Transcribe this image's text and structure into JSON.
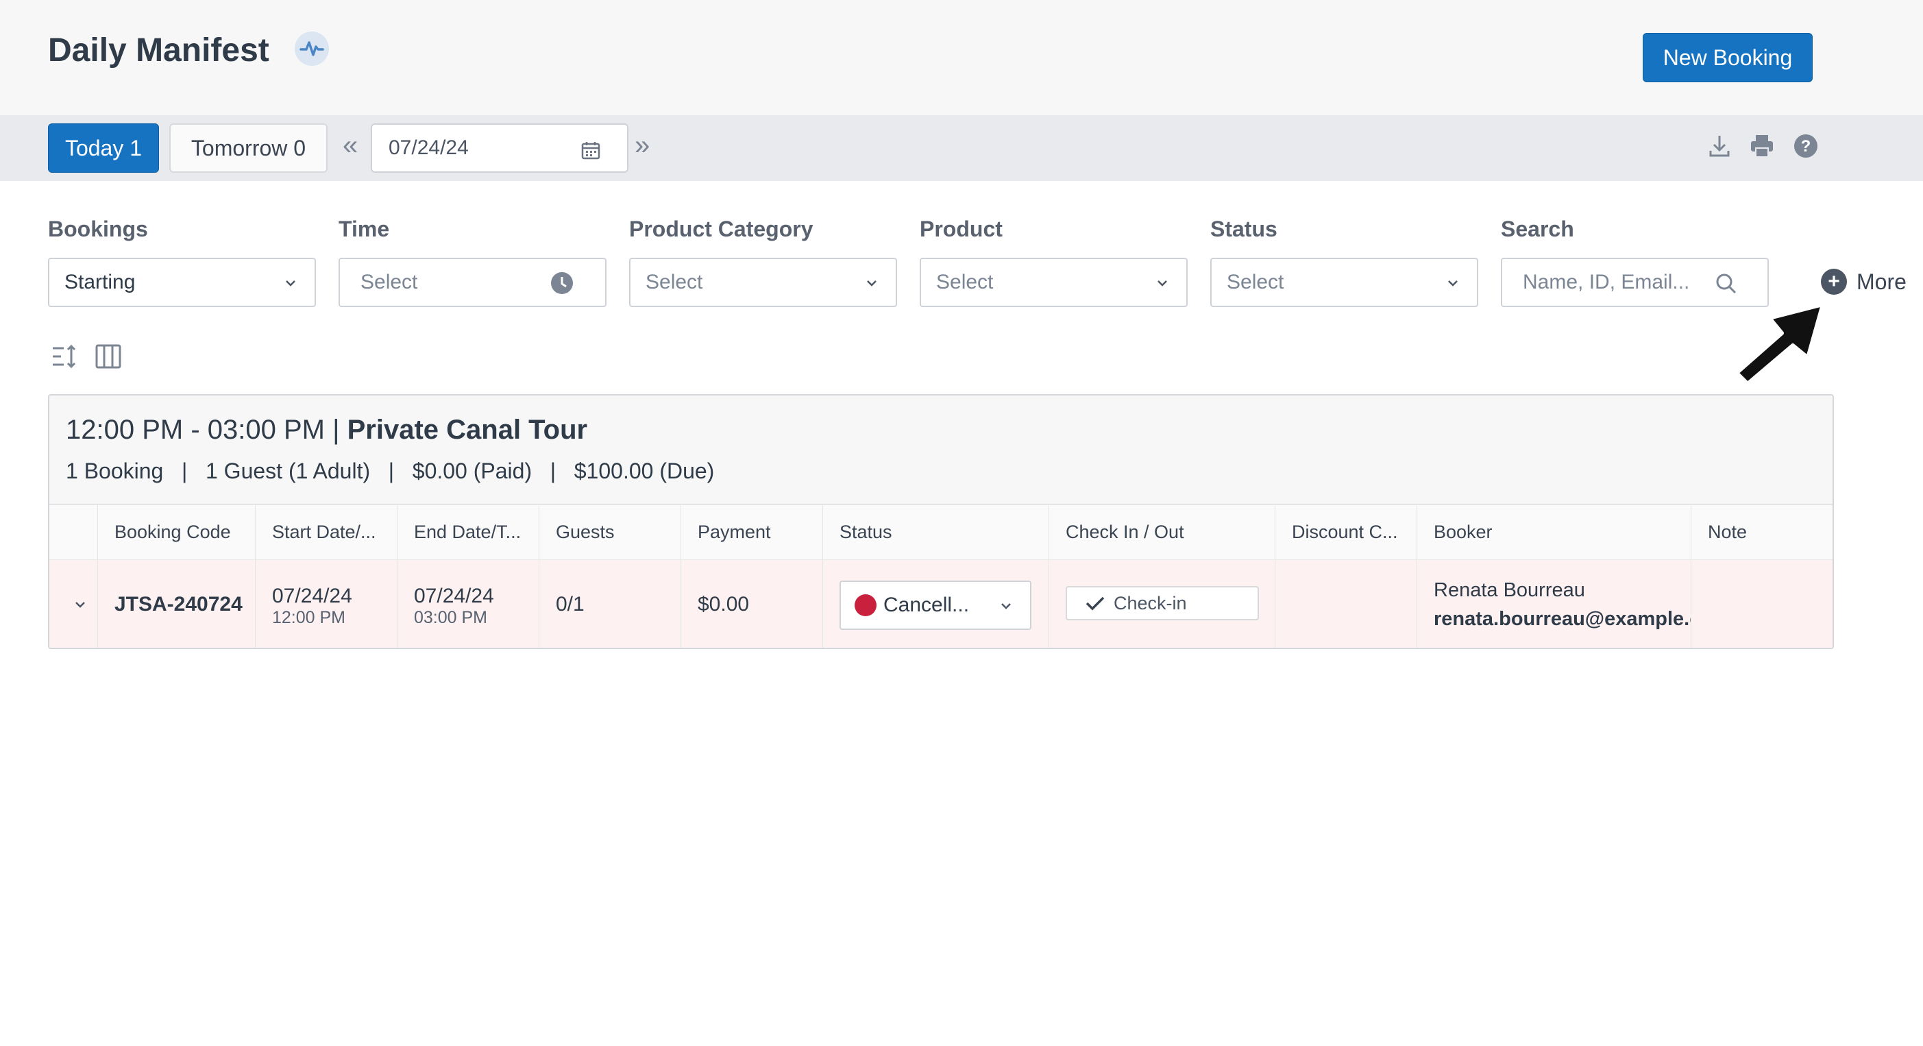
{
  "header": {
    "title": "Daily Manifest",
    "new_booking_label": "New Booking"
  },
  "toolbar": {
    "today_label": "Today 1",
    "tomorrow_label": "Tomorrow 0",
    "prev_label": "«",
    "next_label": "»",
    "date_value": "07/24/24",
    "icons": [
      "download-icon",
      "print-icon",
      "help-icon"
    ]
  },
  "filters": {
    "bookings": {
      "label": "Bookings",
      "value": "Starting"
    },
    "time": {
      "label": "Time",
      "placeholder": "Select"
    },
    "product_category": {
      "label": "Product Category",
      "placeholder": "Select"
    },
    "product": {
      "label": "Product",
      "placeholder": "Select"
    },
    "status": {
      "label": "Status",
      "placeholder": "Select"
    },
    "search": {
      "label": "Search",
      "placeholder": "Name, ID, Email..."
    },
    "more_label": "More"
  },
  "slot": {
    "time_range": "12:00 PM - 03:00 PM | ",
    "product_name": "Private Canal Tour",
    "stats": "1 Booking   |   1 Guest (1 Adult)   |   $0.00 (Paid)   |   $100.00 (Due)"
  },
  "table": {
    "columns": [
      "Booking Code",
      "Start Date/...",
      "End Date/T...",
      "Guests",
      "Payment",
      "Status",
      "Check In / Out",
      "Discount C...",
      "Booker",
      "Note"
    ],
    "rows": [
      {
        "booking_code": "JTSA-240724",
        "start_date": "07/24/24",
        "start_time": "12:00 PM",
        "end_date": "07/24/24",
        "end_time": "03:00 PM",
        "guests": "0/1",
        "payment": "$0.00",
        "status": "Cancell...",
        "status_color": "#c8203d",
        "checkin_label": "Check-in",
        "discount": "",
        "booker_name": "Renata Bourreau",
        "booker_email": "renata.bourreau@example.com",
        "note": ""
      }
    ]
  },
  "colors": {
    "accent": "#1573c1",
    "row_highlight": "#fdf1f1"
  }
}
